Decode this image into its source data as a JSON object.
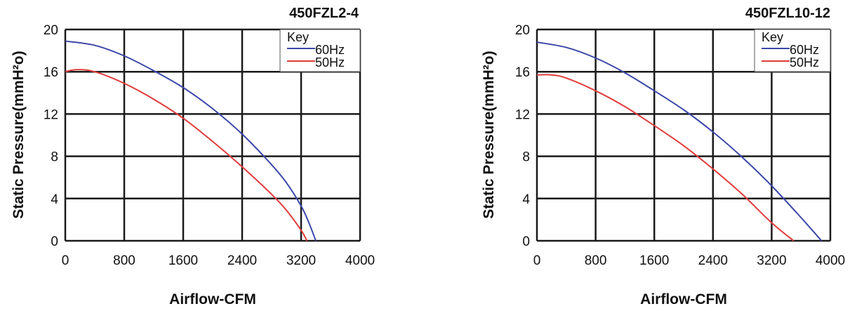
{
  "chart_data": [
    {
      "type": "line",
      "title": "450FZL2-4",
      "xlabel": "Airflow-CFM",
      "ylabel": "Static Pressure(mmH²o)",
      "xlim": [
        0,
        4000
      ],
      "ylim": [
        0,
        20
      ],
      "x_ticks": [
        "0",
        "800",
        "1600",
        "2400",
        "3200",
        "4000"
      ],
      "y_ticks": [
        "0",
        "4",
        "8",
        "12",
        "16",
        "20"
      ],
      "grid": true,
      "legend": {
        "title": "Key",
        "position": "top-right"
      },
      "series": [
        {
          "name": "60Hz",
          "color": "#3b47a8",
          "x": [
            0,
            400,
            800,
            1200,
            1600,
            2000,
            2400,
            2800,
            3000,
            3200,
            3300,
            3400
          ],
          "y": [
            18.9,
            18.5,
            17.5,
            16.1,
            14.5,
            12.5,
            10.1,
            7.2,
            5.5,
            3.3,
            1.8,
            0
          ]
        },
        {
          "name": "50Hz",
          "color": "#e03c3c",
          "x": [
            0,
            150,
            400,
            800,
            1200,
            1600,
            2000,
            2400,
            2800,
            3000,
            3200,
            3280
          ],
          "y": [
            16.0,
            16.2,
            16.0,
            14.9,
            13.4,
            11.6,
            9.4,
            7.0,
            4.4,
            2.9,
            1.0,
            0
          ]
        }
      ]
    },
    {
      "type": "line",
      "title": "450FZL10-12",
      "xlabel": "Airflow-CFM",
      "ylabel": "Static Pressure(mmH²o)",
      "xlim": [
        0,
        4000
      ],
      "ylim": [
        0,
        20
      ],
      "x_ticks": [
        "0",
        "800",
        "1600",
        "2400",
        "3200",
        "4000"
      ],
      "y_ticks": [
        "0",
        "4",
        "8",
        "12",
        "16",
        "20"
      ],
      "grid": true,
      "legend": {
        "title": "Key",
        "position": "top-right"
      },
      "series": [
        {
          "name": "60Hz",
          "color": "#3b47a8",
          "x": [
            0,
            400,
            800,
            1200,
            1600,
            2000,
            2400,
            2800,
            3200,
            3600,
            3880
          ],
          "y": [
            18.8,
            18.3,
            17.3,
            15.9,
            14.2,
            12.4,
            10.3,
            7.9,
            5.2,
            2.2,
            0
          ]
        },
        {
          "name": "50Hz",
          "color": "#e03c3c",
          "x": [
            0,
            200,
            400,
            800,
            1200,
            1600,
            2000,
            2400,
            2800,
            3200,
            3500
          ],
          "y": [
            15.7,
            15.7,
            15.4,
            14.2,
            12.7,
            10.9,
            9.0,
            6.8,
            4.4,
            1.7,
            0
          ]
        }
      ]
    }
  ]
}
